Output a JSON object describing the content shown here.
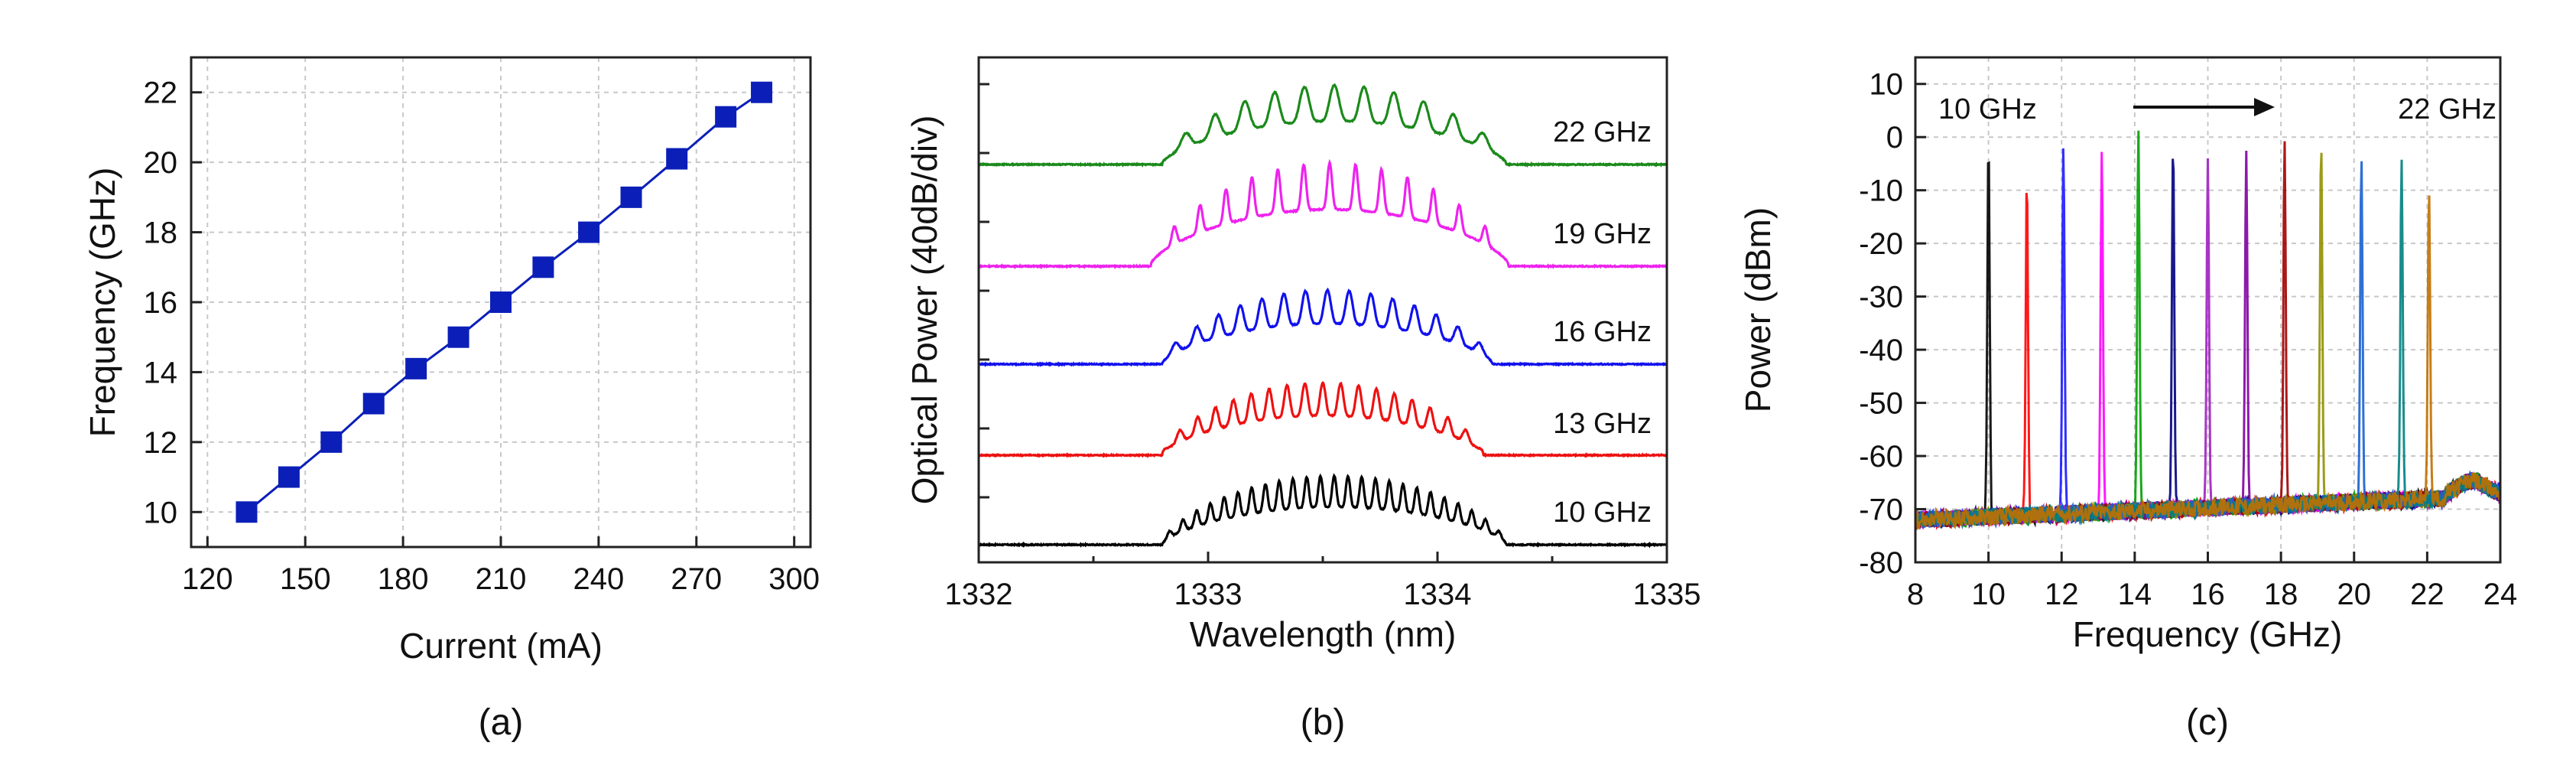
{
  "chart_data": [
    {
      "id": "a",
      "type": "line",
      "panel_label": "(a)",
      "xlabel": "Current (mA)",
      "ylabel": "Frequency (GHz)",
      "xlim": [
        115,
        305
      ],
      "ylim": [
        9,
        23
      ],
      "xticks": [
        "120",
        "150",
        "180",
        "210",
        "240",
        "270",
        "300"
      ],
      "yticks": [
        "10",
        "12",
        "14",
        "16",
        "18",
        "20",
        "22"
      ],
      "grid": true,
      "marker": "square",
      "color": "#0b1fb8",
      "x": [
        132,
        145,
        158,
        171,
        184,
        197,
        210,
        223,
        237,
        250,
        264,
        279,
        290
      ],
      "y": [
        10,
        11,
        12,
        13.1,
        14.1,
        15,
        16,
        17,
        18,
        19,
        20.1,
        21.3,
        22
      ]
    },
    {
      "id": "b",
      "type": "line",
      "panel_label": "(b)",
      "xlabel": "Wavelength (nm)",
      "ylabel": "Optical Power (40dB/div)",
      "xlim": [
        1332,
        1335
      ],
      "xticks": [
        "1332",
        "1333",
        "1334",
        "1335"
      ],
      "grid": false,
      "series": [
        {
          "name": "10 GHz",
          "label": "10 GHz",
          "color": "#000000",
          "center_nm": 1333.55,
          "half_width_nm": 0.75,
          "spacing_nm": 0.06,
          "peak_db": 40
        },
        {
          "name": "13 GHz",
          "label": "13 GHz",
          "color": "#ee1111",
          "center_nm": 1333.5,
          "half_width_nm": 0.7,
          "spacing_nm": 0.078,
          "peak_db": 42
        },
        {
          "name": "16 GHz",
          "label": "16 GHz",
          "color": "#1111ee",
          "center_nm": 1333.52,
          "half_width_nm": 0.72,
          "spacing_nm": 0.095,
          "peak_db": 43
        },
        {
          "name": "19 GHz",
          "label": "19 GHz",
          "color": "#ee22ee",
          "center_nm": 1333.53,
          "half_width_nm": 0.78,
          "spacing_nm": 0.113,
          "peak_db": 60
        },
        {
          "name": "22 GHz",
          "label": "22 GHz",
          "color": "#1b8a1b",
          "center_nm": 1333.55,
          "half_width_nm": 0.75,
          "spacing_nm": 0.13,
          "peak_db": 46
        }
      ]
    },
    {
      "id": "c",
      "type": "line",
      "panel_label": "(c)",
      "xlabel": "Frequency (GHz)",
      "ylabel": "Power (dBm)",
      "xlim": [
        8,
        24
      ],
      "ylim": [
        -80,
        15
      ],
      "xticks": [
        "8",
        "10",
        "12",
        "14",
        "16",
        "18",
        "20",
        "22",
        "24"
      ],
      "yticks": [
        "10",
        "0",
        "-10",
        "-20",
        "-30",
        "-40",
        "-50",
        "-60",
        "-70",
        "-80"
      ],
      "grid": true,
      "annotations": {
        "left": "10 GHz",
        "right": "22 GHz"
      },
      "noise_floor_dbm": -70,
      "series": [
        {
          "name": "10 GHz",
          "peak_ghz": 10.0,
          "peak_dbm": -0.5,
          "color": "#000000"
        },
        {
          "name": "11 GHz",
          "peak_ghz": 11.05,
          "peak_dbm": -7.5,
          "color": "#ff0000"
        },
        {
          "name": "12 GHz",
          "peak_ghz": 12.05,
          "peak_dbm": -1.5,
          "color": "#1a1aff"
        },
        {
          "name": "13 GHz",
          "peak_ghz": 13.1,
          "peak_dbm": -2.5,
          "color": "#ff00ff"
        },
        {
          "name": "14 GHz",
          "peak_ghz": 14.1,
          "peak_dbm": 1.5,
          "color": "#00a000"
        },
        {
          "name": "15 GHz",
          "peak_ghz": 15.05,
          "peak_dbm": -0.8,
          "color": "#000080"
        },
        {
          "name": "16 GHz",
          "peak_ghz": 16.0,
          "peak_dbm": -4.0,
          "color": "#a020c0"
        },
        {
          "name": "17 GHz",
          "peak_ghz": 17.05,
          "peak_dbm": -2.5,
          "color": "#8000a0"
        },
        {
          "name": "18 GHz",
          "peak_ghz": 18.1,
          "peak_dbm": -0.5,
          "color": "#a00000"
        },
        {
          "name": "19 GHz",
          "peak_ghz": 19.1,
          "peak_dbm": -0.5,
          "color": "#909000"
        },
        {
          "name": "20 GHz",
          "peak_ghz": 20.2,
          "peak_dbm": -3.5,
          "color": "#1a60d0"
        },
        {
          "name": "21 GHz",
          "peak_ghz": 21.3,
          "peak_dbm": -4.0,
          "color": "#008080"
        },
        {
          "name": "22 GHz",
          "peak_ghz": 22.05,
          "peak_dbm": -9.5,
          "color": "#c07000"
        }
      ]
    }
  ]
}
